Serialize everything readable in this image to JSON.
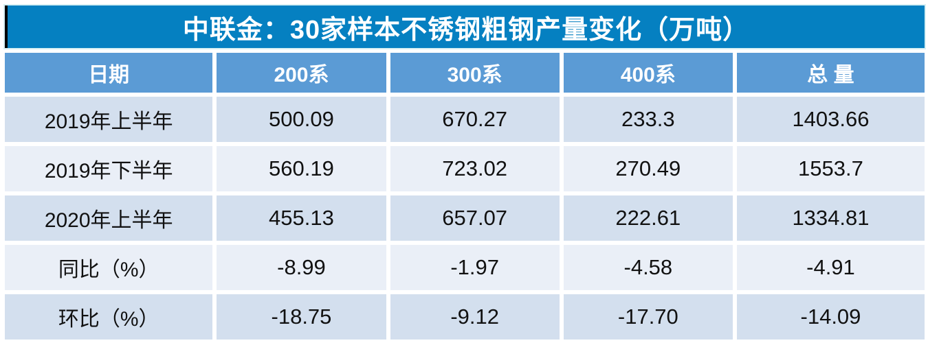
{
  "title": "中联金：30家样本不锈钢粗钢产量变化（万吨）",
  "colors": {
    "title_bar": "#0580C1",
    "title_accent_left": "#000000",
    "header_bg": "#5B9BD5",
    "row_odd_bg": "#D3DFEE",
    "row_even_bg": "#EAEFF7",
    "title_text": "#FFFFFF",
    "header_text": "#FFFFFF",
    "data_text": "#111111"
  },
  "chart_data": {
    "type": "table",
    "title": "中联金：30家样本不锈钢粗钢产量变化（万吨）",
    "columns": [
      "日期",
      "200系",
      "300系",
      "400系",
      "总 量"
    ],
    "rows": [
      [
        "2019年上半年",
        "500.09",
        "670.27",
        "233.3",
        "1403.66"
      ],
      [
        "2019年下半年",
        "560.19",
        "723.02",
        "270.49",
        "1553.7"
      ],
      [
        "2020年上半年",
        "455.13",
        "657.07",
        "222.61",
        "1334.81"
      ],
      [
        "同比（%）",
        "-8.99",
        "-1.97",
        "-4.58",
        "-4.91"
      ],
      [
        "环比（%）",
        "-18.75",
        "-9.12",
        "-17.70",
        "-14.09"
      ]
    ],
    "units": "万吨",
    "notes": "rows 同比/环比 are percent change"
  }
}
